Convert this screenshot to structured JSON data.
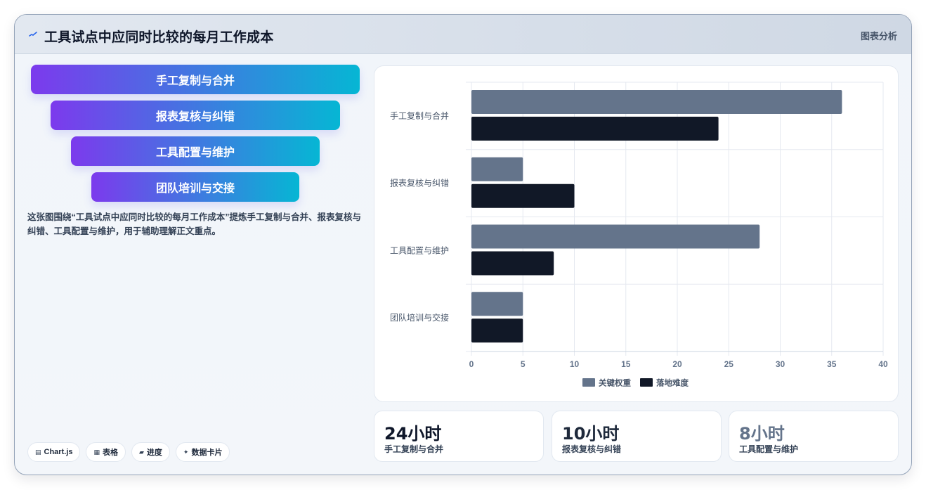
{
  "header": {
    "title": "工具试点中应同时比较的每月工作成本",
    "tag": "图表分析",
    "logo_icon": "sparkline-icon"
  },
  "funnel": {
    "items": [
      {
        "label": "手工复制与合并"
      },
      {
        "label": "报表复核与纠错"
      },
      {
        "label": "工具配置与维护"
      },
      {
        "label": "团队培训与交接"
      }
    ]
  },
  "description": "这张图围绕“工具试点中应同时比较的每月工作成本”提炼手工复制与合并、报表复核与纠错、工具配置与维护，用于辅助理解正文重点。",
  "chips": [
    {
      "icon": "chart-icon",
      "glyph": "▤",
      "label": "Chart.js"
    },
    {
      "icon": "table-icon",
      "glyph": "▦",
      "label": "表格"
    },
    {
      "icon": "progress-icon",
      "glyph": "▰",
      "label": "进度"
    },
    {
      "icon": "sparkle-icon",
      "glyph": "✦",
      "label": "数据卡片"
    }
  ],
  "stats": [
    {
      "value": "24小时",
      "label": "手工复制与合并",
      "color": "#0f172a"
    },
    {
      "value": "10小时",
      "label": "报表复核与纠错",
      "color": "#1e293b"
    },
    {
      "value": "8小时",
      "label": "工具配置与维护",
      "color": "#64748b"
    }
  ],
  "chart_data": {
    "type": "bar",
    "orientation": "horizontal",
    "categories": [
      "手工复制与合并",
      "报表复核与纠错",
      "工具配置与维护",
      "团队培训与交接"
    ],
    "series": [
      {
        "name": "关键权重",
        "values": [
          36,
          5,
          28,
          5
        ],
        "color": "#64748b"
      },
      {
        "name": "落地难度",
        "values": [
          24,
          10,
          8,
          5
        ],
        "color": "#111827"
      }
    ],
    "xlim": [
      0,
      40
    ],
    "xticks": [
      0,
      5,
      10,
      15,
      20,
      25,
      30,
      35,
      40
    ],
    "grid": true,
    "legend_position": "bottom"
  }
}
